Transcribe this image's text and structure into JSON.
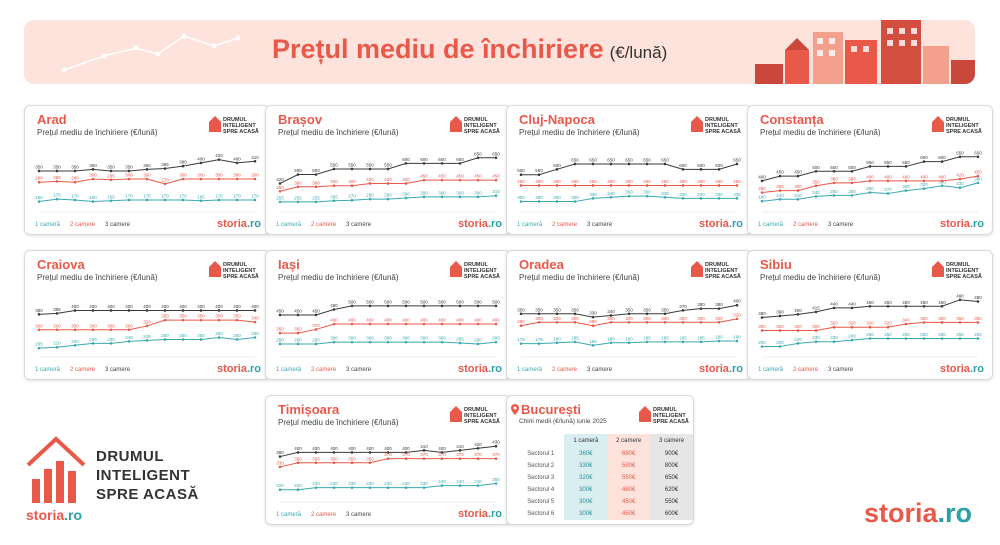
{
  "banner": {
    "title": "Prețul mediu de închiriere",
    "unit": "(€/lună)"
  },
  "card_subtitle": "Prețul mediu de închiriere (€/lună)",
  "badge_text": [
    "DRUMUL",
    "INTELIGENT",
    "SPRE ACASĂ"
  ],
  "legend": {
    "r1": "1 cameră",
    "r2": "2 camere",
    "r3": "3 camere"
  },
  "storia": {
    "main": "storia",
    "suffix": ".ro"
  },
  "logo": {
    "line1": "DRUMUL",
    "line2": "INTELIGENT",
    "line3": "SPRE ACASĂ"
  },
  "colors": {
    "one_room": "#3aa9b0",
    "two_rooms": "#e8594a",
    "three_rooms": "#3a3a3a",
    "accent": "#e8594a"
  },
  "bucuresti": {
    "city": "București",
    "subtitle": "Chirii medii (€/lună) iunie 2025",
    "headers": [
      "1 cameră",
      "2 camere",
      "3 camere"
    ],
    "rows": [
      {
        "label": "Sectorul 1",
        "v": [
          "360€",
          "680€",
          "900€"
        ]
      },
      {
        "label": "Sectorul 2",
        "v": [
          "330€",
          "590€",
          "800€"
        ]
      },
      {
        "label": "Sectorul 3",
        "v": [
          "320€",
          "550€",
          "650€"
        ]
      },
      {
        "label": "Sectorul 4",
        "v": [
          "300€",
          "480€",
          "620€"
        ]
      },
      {
        "label": "Sectorul 5",
        "v": [
          "300€",
          "450€",
          "550€"
        ]
      },
      {
        "label": "Sectorul 6",
        "v": [
          "300€",
          "450€",
          "600€"
        ]
      }
    ]
  },
  "chart_data": [
    {
      "type": "line",
      "title": "Arad",
      "ylim": [
        120,
        480
      ],
      "series": [
        {
          "name": "1 cameră",
          "values": [
            160,
            175,
            170,
            160,
            165,
            170,
            170,
            170,
            170,
            165,
            170,
            170,
            170
          ]
        },
        {
          "name": "2 camere",
          "values": [
            280,
            285,
            280,
            300,
            295,
            300,
            300,
            270,
            300,
            300,
            300,
            300,
            300
          ]
        },
        {
          "name": "3 camere",
          "values": [
            350,
            350,
            350,
            360,
            350,
            350,
            360,
            365,
            380,
            400,
            420,
            400,
            410
          ]
        }
      ]
    },
    {
      "type": "line",
      "title": "Brașov",
      "ylim": [
        200,
        720
      ],
      "series": [
        {
          "name": "1 cameră",
          "values": [
            255,
            255,
            255,
            265,
            270,
            280,
            280,
            290,
            300,
            300,
            300,
            300,
            310
          ]
        },
        {
          "name": "2 camere",
          "values": [
            350,
            390,
            390,
            400,
            400,
            420,
            420,
            420,
            450,
            450,
            450,
            450,
            450
          ]
        },
        {
          "name": "3 camere",
          "values": [
            420,
            500,
            500,
            550,
            550,
            550,
            550,
            600,
            600,
            600,
            600,
            650,
            650
          ]
        }
      ]
    },
    {
      "type": "line",
      "title": "Cluj-Napoca",
      "ylim": [
        240,
        780
      ],
      "series": [
        {
          "name": "1 cameră",
          "values": [
            300,
            300,
            300,
            300,
            330,
            340,
            350,
            350,
            340,
            330,
            330,
            330,
            330
          ]
        },
        {
          "name": "2 camere",
          "values": [
            450,
            450,
            450,
            450,
            450,
            450,
            450,
            450,
            450,
            450,
            450,
            450,
            450
          ]
        },
        {
          "name": "3 camere",
          "values": [
            550,
            550,
            600,
            650,
            650,
            650,
            650,
            650,
            650,
            600,
            600,
            600,
            650
          ]
        }
      ]
    },
    {
      "type": "line",
      "title": "Constanța",
      "ylim": [
        120,
        720
      ],
      "series": [
        {
          "name": "1 cameră",
          "values": [
            190,
            210,
            210,
            240,
            250,
            250,
            280,
            270,
            300,
            320,
            350,
            330,
            380
          ]
        },
        {
          "name": "2 camere",
          "values": [
            280,
            300,
            300,
            350,
            380,
            380,
            400,
            400,
            400,
            400,
            400,
            420,
            450
          ]
        },
        {
          "name": "3 camere",
          "values": [
            400,
            450,
            450,
            500,
            500,
            500,
            550,
            550,
            550,
            600,
            600,
            650,
            650
          ]
        }
      ]
    },
    {
      "type": "line",
      "title": "Craiova",
      "ylim": [
        180,
        480
      ],
      "series": [
        {
          "name": "1 cameră",
          "values": [
            205,
            210,
            220,
            230,
            230,
            240,
            245,
            250,
            250,
            250,
            260,
            250,
            260
          ]
        },
        {
          "name": "2 camere",
          "values": [
            300,
            300,
            300,
            300,
            300,
            300,
            320,
            350,
            350,
            350,
            350,
            350,
            340
          ]
        },
        {
          "name": "3 camere",
          "values": [
            380,
            385,
            400,
            400,
            400,
            400,
            400,
            400,
            400,
            400,
            400,
            400,
            400
          ]
        }
      ]
    },
    {
      "type": "line",
      "title": "Iași",
      "ylim": [
        240,
        560
      ],
      "series": [
        {
          "name": "1 cameră",
          "values": [
            290,
            290,
            290,
            300,
            300,
            300,
            300,
            300,
            300,
            300,
            295,
            290,
            300
          ]
        },
        {
          "name": "2 camere",
          "values": [
            350,
            350,
            370,
            400,
            400,
            400,
            400,
            400,
            400,
            400,
            400,
            400,
            400
          ]
        },
        {
          "name": "3 camere",
          "values": [
            450,
            450,
            450,
            480,
            500,
            500,
            500,
            500,
            500,
            500,
            500,
            500,
            500
          ]
        }
      ]
    },
    {
      "type": "line",
      "title": "Oradea",
      "ylim": [
        120,
        460
      ],
      "series": [
        {
          "name": "1 cameră",
          "values": [
            175,
            175,
            180,
            185,
            165,
            180,
            180,
            185,
            185,
            185,
            185,
            190,
            190
          ]
        },
        {
          "name": "2 camere",
          "values": [
            280,
            300,
            300,
            300,
            280,
            300,
            300,
            300,
            300,
            300,
            300,
            300,
            320
          ]
        },
        {
          "name": "3 camere",
          "values": [
            350,
            350,
            350,
            350,
            330,
            340,
            350,
            350,
            350,
            370,
            380,
            380,
            400
          ]
        }
      ]
    },
    {
      "type": "line",
      "title": "Sibiu",
      "ylim": [
        160,
        520
      ],
      "series": [
        {
          "name": "1 cameră",
          "values": [
            200,
            200,
            220,
            230,
            230,
            240,
            250,
            250,
            250,
            250,
            250,
            250,
            250
          ]
        },
        {
          "name": "2 camere",
          "values": [
            300,
            300,
            300,
            300,
            320,
            320,
            320,
            320,
            340,
            350,
            350,
            350,
            350
          ]
        },
        {
          "name": "3 camere",
          "values": [
            380,
            390,
            400,
            415,
            440,
            440,
            450,
            450,
            450,
            450,
            450,
            490,
            480
          ]
        }
      ]
    },
    {
      "type": "line",
      "title": "Timișoara",
      "ylim": [
        180,
        460
      ],
      "series": [
        {
          "name": "1 cameră",
          "values": [
            220,
            220,
            230,
            230,
            230,
            230,
            230,
            230,
            230,
            240,
            240,
            240,
            250
          ]
        },
        {
          "name": "2 camere",
          "values": [
            330,
            350,
            350,
            350,
            350,
            350,
            370,
            370,
            370,
            370,
            370,
            370,
            370
          ]
        },
        {
          "name": "3 camere",
          "values": [
            380,
            400,
            400,
            400,
            400,
            400,
            400,
            400,
            410,
            400,
            410,
            420,
            430
          ]
        }
      ]
    }
  ]
}
